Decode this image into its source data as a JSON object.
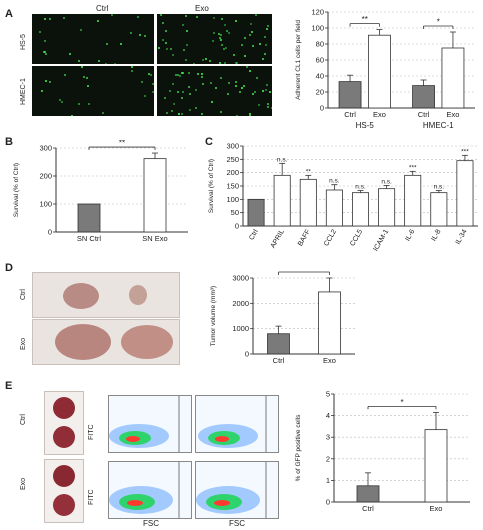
{
  "panels": {
    "A": {
      "letter": "A",
      "col_ctrl": "Ctrl",
      "col_exo": "Exo",
      "row1": "HS-5",
      "row2": "HMEC-1"
    },
    "B": {
      "letter": "B"
    },
    "C": {
      "letter": "C"
    },
    "D": {
      "letter": "D",
      "row_ctrl": "Ctrl",
      "row_exo": "Exo"
    },
    "E": {
      "letter": "E",
      "row_ctrl": "Ctrl",
      "row_exo": "Exo",
      "flow_ylabel": "FITC",
      "flow_xlabel": "FSC"
    }
  },
  "colors": {
    "ctrl_bar": "#7a7a7a",
    "exo_bar": "#ffffff",
    "bar_stroke": "#333333"
  },
  "chart_data": [
    {
      "id": "chartA",
      "type": "bar",
      "ylabel": "Adherent CL1 cells per field",
      "ylim": [
        0,
        120
      ],
      "yticks": [
        0,
        20,
        40,
        60,
        80,
        100,
        120
      ],
      "groups": [
        "HS-5",
        "HMEC-1"
      ],
      "categories": [
        "Ctrl",
        "Exo",
        "Ctrl",
        "Exo"
      ],
      "values": [
        33,
        91,
        28,
        75
      ],
      "errors": [
        8,
        7,
        7,
        20
      ],
      "significance": [
        "**",
        "*"
      ],
      "grid": true
    },
    {
      "id": "chartB",
      "type": "bar",
      "ylabel": "Survival (% of Ctrl)",
      "ylim": [
        0,
        300
      ],
      "yticks": [
        0,
        100,
        200,
        300
      ],
      "categories": [
        "SN Ctrl",
        "SN Exo"
      ],
      "values": [
        100,
        262
      ],
      "errors": [
        0,
        20
      ],
      "significance": [
        "**"
      ],
      "grid": true
    },
    {
      "id": "chartC",
      "type": "bar",
      "ylabel": "Survival (% of Ctrl)",
      "ylim": [
        0,
        300
      ],
      "yticks": [
        0,
        50,
        100,
        150,
        200,
        250,
        300
      ],
      "categories": [
        "Ctrl",
        "APRIL",
        "BAFF",
        "CCL2",
        "CCL5",
        "ICAM-1",
        "IL-6",
        "IL-8",
        "IL-34"
      ],
      "values": [
        100,
        190,
        175,
        135,
        125,
        140,
        190,
        125,
        245
      ],
      "errors": [
        0,
        45,
        15,
        20,
        8,
        12,
        15,
        8,
        20
      ],
      "sig_labels": [
        "",
        "n.s.",
        "**",
        "n.s.",
        "n.s.",
        "n.s.",
        "***",
        "n.s.",
        "***"
      ],
      "grid": true
    },
    {
      "id": "chartD",
      "type": "bar",
      "ylabel": "Tumor volume (mm³)",
      "ylim": [
        0,
        3000
      ],
      "yticks": [
        0,
        1000,
        2000,
        3000
      ],
      "categories": [
        "Ctrl",
        "Exo"
      ],
      "values": [
        800,
        2450
      ],
      "errors": [
        300,
        550
      ],
      "significance": [
        "*"
      ],
      "grid": true
    },
    {
      "id": "chartE",
      "type": "bar",
      "ylabel": "% of GFP positive cells",
      "ylim": [
        0,
        5
      ],
      "yticks": [
        0,
        1,
        2,
        3,
        4,
        5
      ],
      "categories": [
        "Ctrl",
        "Exo"
      ],
      "values": [
        0.75,
        3.35
      ],
      "errors": [
        0.6,
        0.8
      ],
      "significance": [
        "*"
      ],
      "grid": true
    }
  ]
}
